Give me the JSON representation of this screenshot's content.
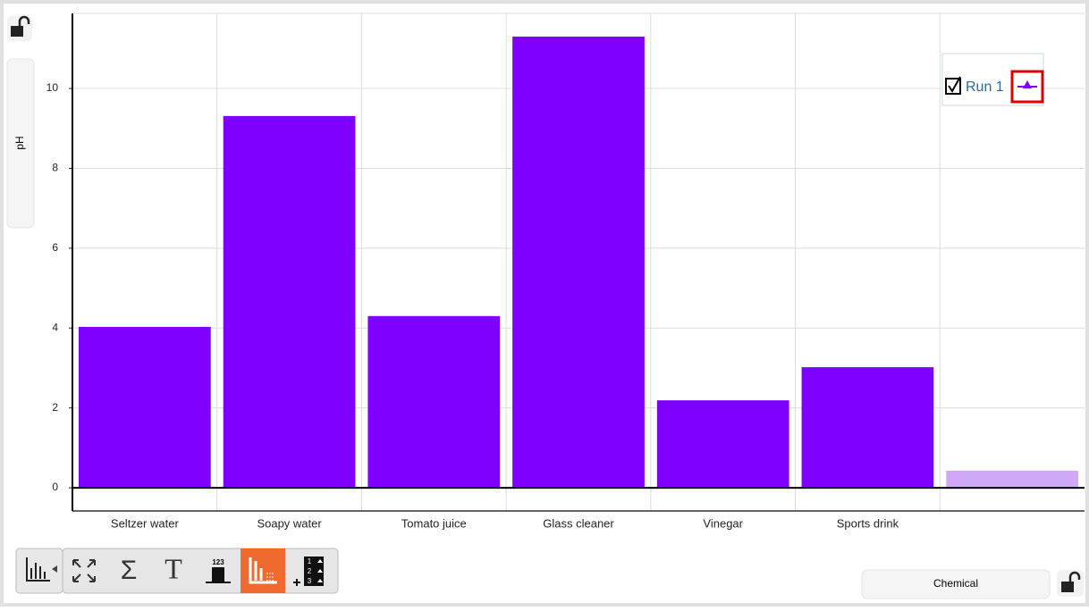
{
  "chart_data": {
    "type": "bar",
    "y_label": "pH",
    "x_label": "Chemical",
    "categories": [
      "Seltzer water",
      "Soapy water",
      "Tomato juice",
      "Glass cleaner",
      "Vinegar",
      "Sports drink",
      null
    ],
    "series": [
      {
        "name": "Run 1",
        "color": "#8000ff",
        "values": [
          4.03,
          9.31,
          4.3,
          11.3,
          2.19,
          3.02,
          0.43
        ]
      }
    ],
    "bar_colors": [
      "#8000ff",
      "#8000ff",
      "#8000ff",
      "#8000ff",
      "#8000ff",
      "#8000ff",
      "#d0a8f8"
    ],
    "ylim": [
      -0.58,
      11.88
    ],
    "yticks": [
      0,
      2,
      4,
      6,
      8,
      10
    ],
    "grid": true,
    "legend": "top-right"
  },
  "toolbar": {
    "sum": "Σ",
    "text": "T",
    "data_labels": "123",
    "table": [
      "1",
      "2",
      "3"
    ]
  }
}
